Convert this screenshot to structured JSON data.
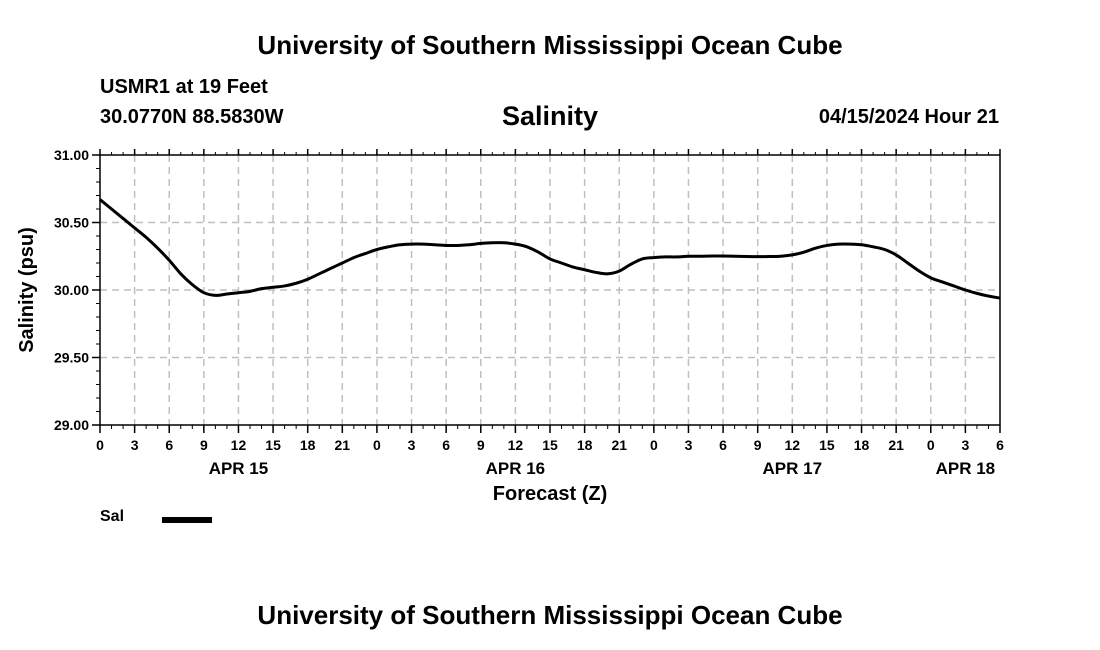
{
  "header": {
    "top_title": "University of Southern Mississippi Ocean Cube",
    "station": "USMR1 at 19 Feet",
    "coords": "30.0770N  88.5830W",
    "chart_title": "Salinity",
    "run_time": "04/15/2024 Hour 21"
  },
  "footer": {
    "bottom_title": "University of Southern Mississippi Ocean Cube"
  },
  "legend": {
    "label": "Sal"
  },
  "chart_data": {
    "type": "line",
    "title": "Salinity",
    "xlabel": "Forecast (Z)",
    "ylabel": "Salinity (psu)",
    "x_unit": "forecast hours from 00Z APR 15",
    "xlim": [
      0,
      78
    ],
    "ylim": [
      29.0,
      31.0
    ],
    "y_ticks": [
      29.0,
      29.5,
      30.0,
      30.5,
      31.0
    ],
    "y_tick_labels": [
      "29.00",
      "29.50",
      "30.00",
      "30.50",
      "31.00"
    ],
    "x_tick_labels": [
      "0",
      "3",
      "6",
      "9",
      "12",
      "15",
      "18",
      "21",
      "0",
      "3",
      "6",
      "9",
      "12",
      "15",
      "18",
      "21",
      "0",
      "3",
      "6",
      "9",
      "12",
      "15",
      "18",
      "21",
      "0",
      "3",
      "6"
    ],
    "date_labels": [
      {
        "label": "APR 15",
        "hour": 12
      },
      {
        "label": "APR 16",
        "hour": 36
      },
      {
        "label": "APR 17",
        "hour": 60
      },
      {
        "label": "APR 18",
        "hour": 75
      }
    ],
    "grid": true,
    "legend_position": "bottom-left",
    "line_color": "#000000",
    "series": [
      {
        "name": "Sal",
        "x": [
          0,
          1,
          2,
          3,
          4,
          5,
          6,
          7,
          8,
          9,
          10,
          11,
          12,
          13,
          14,
          15,
          16,
          17,
          18,
          19,
          20,
          21,
          22,
          23,
          24,
          25,
          26,
          27,
          28,
          29,
          30,
          31,
          32,
          33,
          34,
          35,
          36,
          37,
          38,
          39,
          40,
          41,
          42,
          43,
          44,
          45,
          46,
          47,
          48,
          49,
          50,
          51,
          52,
          53,
          54,
          55,
          56,
          57,
          58,
          59,
          60,
          61,
          62,
          63,
          64,
          65,
          66,
          67,
          68,
          69,
          70,
          71,
          72,
          73,
          74,
          75,
          76,
          77,
          78
        ],
        "values": [
          30.67,
          30.6,
          30.53,
          30.46,
          30.39,
          30.31,
          30.22,
          30.12,
          30.04,
          29.98,
          29.96,
          29.97,
          29.98,
          29.99,
          30.01,
          30.02,
          30.03,
          30.05,
          30.08,
          30.12,
          30.16,
          30.2,
          30.24,
          30.27,
          30.3,
          30.32,
          30.335,
          30.34,
          30.34,
          30.335,
          30.33,
          30.33,
          30.335,
          30.345,
          30.35,
          30.35,
          30.34,
          30.32,
          30.28,
          30.23,
          30.2,
          30.17,
          30.15,
          30.13,
          30.12,
          30.14,
          30.19,
          30.23,
          30.24,
          30.245,
          30.245,
          30.25,
          30.25,
          30.252,
          30.252,
          30.25,
          30.248,
          30.247,
          30.248,
          30.25,
          30.26,
          30.28,
          30.31,
          30.33,
          30.34,
          30.34,
          30.335,
          30.32,
          30.3,
          30.26,
          30.2,
          30.14,
          30.09,
          30.06,
          30.03,
          30.0,
          29.975,
          29.955,
          29.94
        ]
      }
    ]
  }
}
